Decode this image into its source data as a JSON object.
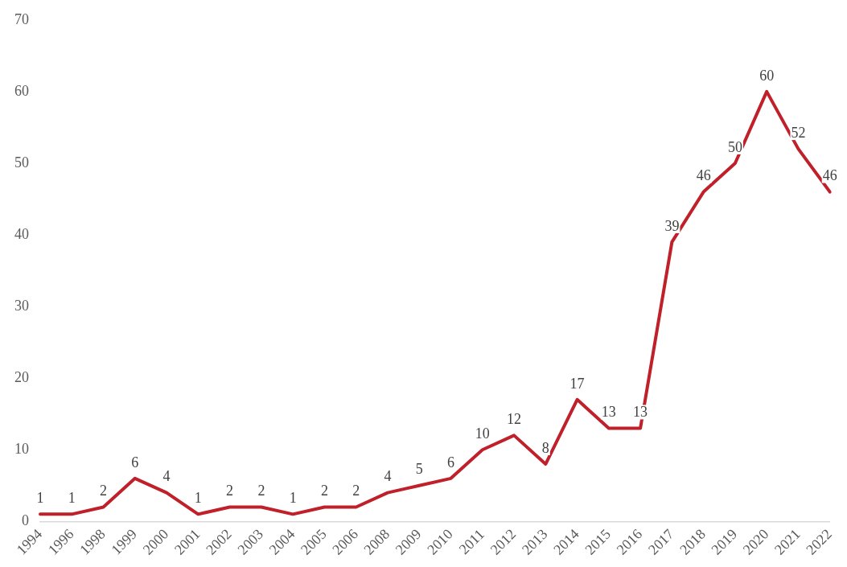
{
  "chart_data": {
    "type": "line",
    "categories": [
      "1994",
      "1996",
      "1998",
      "1999",
      "2000",
      "2001",
      "2002",
      "2003",
      "2004",
      "2005",
      "2006",
      "2008",
      "2009",
      "2010",
      "2011",
      "2012",
      "2013",
      "2014",
      "2015",
      "2016",
      "2017",
      "2018",
      "2019",
      "2020",
      "2021",
      "2022"
    ],
    "series": [
      {
        "color": "#c0202a",
        "values": [
          1,
          1,
          2,
          6,
          4,
          1,
          2,
          2,
          1,
          2,
          2,
          4,
          5,
          6,
          10,
          12,
          8,
          17,
          13,
          13,
          39,
          46,
          50,
          60,
          52,
          46
        ]
      }
    ],
    "ylim": [
      0,
      70
    ],
    "yticks": [
      0,
      10,
      20,
      30,
      40,
      50,
      60,
      70
    ],
    "grid": false,
    "legend": false,
    "marker": "none",
    "line_style": "solid",
    "data_labels": true
  }
}
